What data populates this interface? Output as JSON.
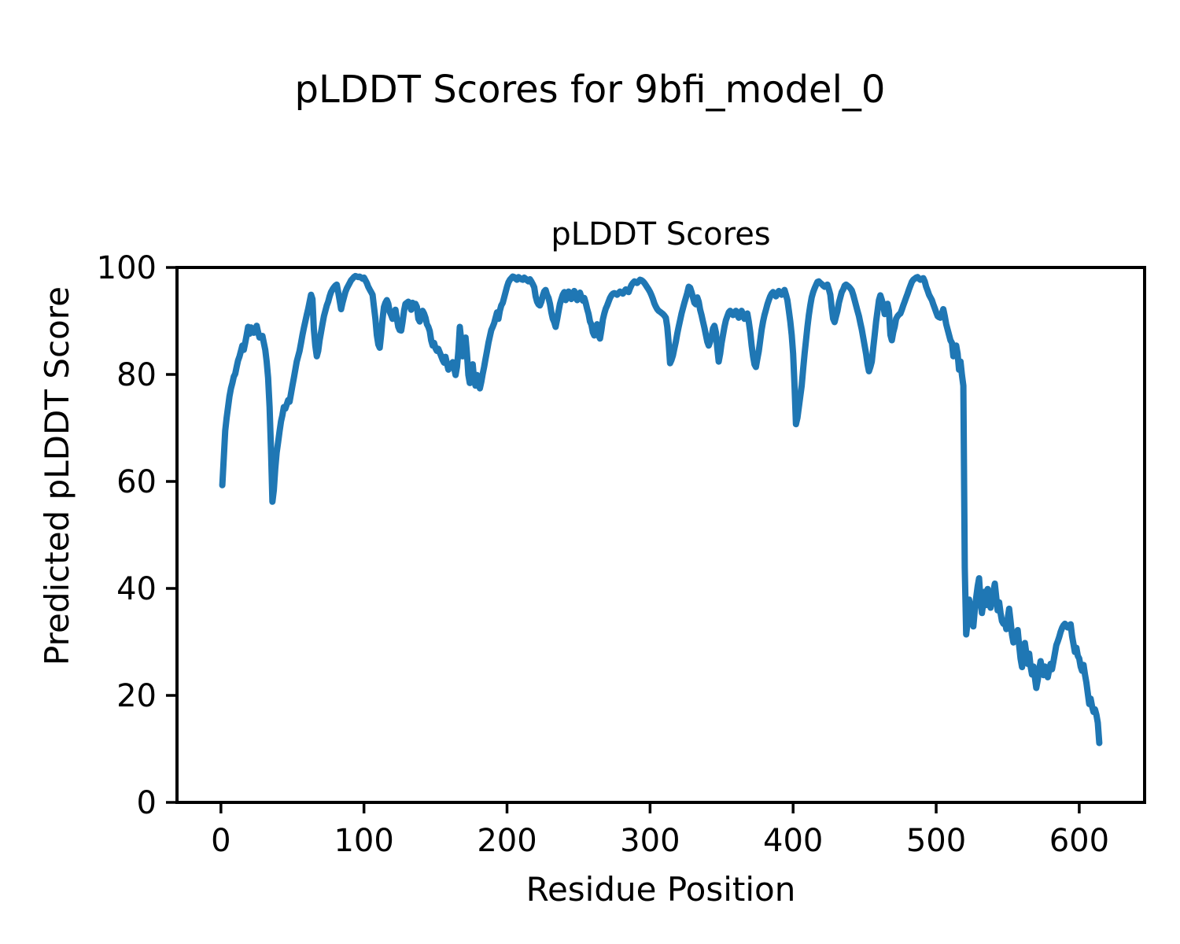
{
  "figure_title": "pLDDT Scores for 9bfi_model_0",
  "chart_data": {
    "type": "line",
    "title": "pLDDT Scores",
    "xlabel": "Residue Position",
    "ylabel": "Predicted pLDDT Score",
    "xlim": [
      -30.7,
      645.7
    ],
    "ylim": [
      0,
      100
    ],
    "xticks": [
      0,
      100,
      200,
      300,
      400,
      500,
      600
    ],
    "yticks": [
      0,
      20,
      40,
      60,
      80,
      100
    ],
    "grid": false,
    "legend": "none",
    "line_color": "#1f77b4",
    "series": [
      {
        "name": "pLDDT",
        "x_start": 1,
        "x_step": 1,
        "values": [
          59.3,
          64.5,
          69.5,
          71.9,
          73.9,
          75.9,
          77.4,
          78.4,
          79.6,
          80.1,
          81.4,
          82.6,
          83.4,
          84.4,
          85.4,
          84.6,
          85.9,
          87.4,
          88.9,
          87.6,
          88.8,
          88.1,
          87.8,
          88.4,
          89.1,
          87.9,
          86.9,
          87.1,
          87.2,
          85.9,
          84.6,
          82.4,
          79.4,
          73.9,
          65.9,
          56.2,
          58.4,
          62.4,
          65.4,
          67.4,
          69.4,
          71.2,
          72.4,
          73.9,
          73.6,
          74.4,
          75.2,
          74.9,
          76.4,
          77.9,
          79.4,
          80.9,
          82.4,
          83.4,
          84.4,
          85.9,
          87.4,
          88.7,
          89.9,
          91.1,
          92.3,
          93.6,
          94.9,
          94.1,
          88.4,
          85.4,
          83.4,
          84.4,
          86.4,
          87.9,
          89.4,
          90.9,
          91.9,
          92.9,
          93.6,
          94.6,
          95.4,
          95.9,
          96.3,
          96.6,
          96.8,
          95.4,
          93.8,
          92.2,
          93.4,
          94.4,
          95.4,
          96.1,
          96.6,
          97.1,
          97.6,
          97.9,
          98.2,
          98.4,
          98.3,
          98.2,
          98.3,
          98.1,
          97.9,
          98.1,
          97.6,
          97.1,
          96.4,
          95.9,
          95.4,
          94.9,
          92.6,
          90.4,
          87.4,
          85.6,
          85.0,
          87.4,
          90.4,
          92.6,
          93.4,
          93.9,
          93.2,
          91.7,
          91.1,
          90.4,
          91.4,
          92.1,
          90.4,
          88.9,
          88.3,
          88.2,
          89.9,
          91.9,
          93.2,
          93.4,
          93.6,
          92.9,
          92.1,
          93.4,
          93.1,
          93.2,
          92.6,
          90.4,
          89.9,
          90.9,
          91.9,
          91.4,
          90.6,
          89.4,
          88.9,
          88.1,
          86.4,
          85.4,
          85.9,
          84.9,
          84.4,
          84.8,
          84.1,
          83.4,
          82.7,
          82.2,
          83.3,
          82.1,
          80.9,
          81.9,
          81.3,
          82.3,
          81.3,
          79.9,
          81.4,
          84.4,
          88.9,
          86.4,
          83.4,
          84.9,
          86.9,
          83.9,
          79.9,
          78.4,
          80.9,
          81.9,
          78.9,
          77.9,
          79.9,
          78.4,
          77.4,
          78.6,
          80.1,
          81.4,
          82.9,
          84.4,
          85.9,
          87.1,
          88.3,
          88.9,
          89.6,
          90.6,
          91.6,
          90.4,
          91.9,
          92.9,
          93.4,
          94.4,
          95.4,
          96.4,
          97.2,
          97.7,
          98.0,
          98.3,
          98.2,
          97.9,
          97.7,
          98.2,
          98.0,
          97.8,
          97.7,
          98.1,
          97.9,
          97.6,
          97.4,
          97.8,
          97.4,
          96.9,
          96.3,
          94.6,
          93.6,
          93.1,
          92.9,
          93.6,
          94.7,
          95.5,
          95.8,
          94.9,
          94.3,
          93.2,
          91.6,
          90.4,
          89.8,
          88.9,
          90.3,
          91.8,
          93.2,
          94.1,
          94.9,
          95.4,
          93.9,
          94.4,
          95.5,
          94.7,
          94.1,
          95.0,
          95.6,
          94.6,
          93.9,
          94.8,
          95.3,
          94.4,
          93.8,
          94.3,
          93.4,
          92.3,
          91.3,
          89.9,
          89.3,
          87.9,
          87.3,
          88.9,
          89.4,
          87.3,
          86.7,
          88.3,
          90.3,
          91.4,
          92.3,
          92.9,
          93.6,
          94.3,
          94.8,
          95.1,
          95.2,
          95.1,
          94.9,
          95.2,
          95.5,
          95.3,
          95.1,
          95.5,
          95.9,
          95.6,
          95.4,
          96.1,
          96.7,
          97.1,
          97.4,
          97.3,
          97.1,
          97.4,
          97.7,
          97.6,
          97.4,
          97.1,
          96.7,
          96.3,
          95.9,
          95.4,
          94.8,
          94.1,
          93.3,
          92.7,
          92.2,
          91.9,
          91.7,
          91.5,
          91.3,
          91.0,
          90.6,
          88.9,
          85.9,
          82.1,
          82.7,
          83.6,
          84.9,
          86.1,
          87.6,
          88.9,
          90.1,
          91.4,
          92.4,
          93.4,
          94.3,
          95.2,
          96.4,
          96.2,
          95.4,
          94.4,
          93.4,
          93.1,
          94.4,
          93.6,
          92.1,
          91.1,
          89.9,
          88.7,
          87.4,
          86.1,
          85.4,
          86.1,
          87.1,
          88.6,
          89.1,
          87.9,
          84.9,
          82.4,
          83.9,
          85.9,
          87.4,
          88.9,
          90.1,
          90.9,
          91.6,
          91.9,
          91.4,
          91.1,
          91.6,
          91.9,
          91.1,
          90.6,
          91.4,
          91.9,
          91.1,
          90.4,
          91.2,
          91.4,
          89.9,
          87.9,
          85.4,
          83.4,
          81.9,
          81.4,
          82.9,
          84.4,
          86.4,
          88.4,
          89.9,
          91.1,
          92.1,
          93.1,
          93.9,
          94.6,
          95.1,
          95.4,
          94.9,
          94.6,
          95.1,
          95.6,
          95.1,
          94.9,
          95.4,
          95.8,
          94.9,
          93.9,
          91.9,
          89.9,
          87.4,
          83.9,
          77.9,
          70.7,
          71.9,
          73.9,
          75.9,
          77.9,
          80.9,
          83.9,
          86.4,
          88.9,
          91.1,
          92.9,
          94.4,
          95.4,
          96.1,
          96.7,
          97.3,
          97.4,
          97.1,
          96.9,
          96.6,
          96.4,
          96.6,
          96.8,
          95.9,
          94.9,
          92.4,
          90.4,
          89.8,
          90.9,
          91.9,
          93.4,
          94.4,
          95.4,
          95.9,
          96.6,
          96.8,
          96.6,
          96.4,
          96.1,
          95.7,
          94.9,
          93.9,
          92.9,
          91.9,
          90.9,
          89.6,
          88.4,
          86.9,
          85.4,
          83.9,
          81.9,
          80.6,
          81.4,
          82.4,
          84.9,
          87.4,
          89.9,
          91.9,
          93.9,
          94.8,
          93.9,
          92.9,
          91.3,
          92.1,
          93.2,
          91.9,
          87.4,
          86.4,
          87.9,
          88.9,
          90.4,
          90.9,
          91.2,
          91.4,
          92.1,
          92.9,
          93.6,
          94.4,
          95.1,
          95.9,
          96.6,
          97.3,
          97.7,
          97.9,
          98.1,
          98.2,
          97.9,
          97.7,
          97.9,
          98.0,
          97.4,
          96.4,
          95.7,
          94.9,
          94.4,
          93.9,
          93.1,
          92.4,
          91.6,
          90.9,
          90.7,
          90.6,
          91.4,
          92.2,
          90.9,
          89.4,
          88.4,
          87.4,
          86.4,
          85.9,
          83.4,
          84.4,
          85.4,
          83.9,
          80.9,
          82.4,
          79.9,
          77.9,
          43.9,
          31.4,
          33.9,
          37.9,
          36.4,
          34.4,
          32.9,
          35.9,
          38.4,
          40.4,
          41.9,
          37.9,
          35.4,
          37.4,
          39.4,
          36.9,
          39.9,
          38.4,
          36.4,
          37.9,
          39.4,
          40.9,
          38.4,
          35.9,
          37.4,
          35.4,
          33.9,
          33.4,
          33.9,
          32.4,
          34.4,
          36.2,
          33.9,
          31.4,
          29.9,
          31.8,
          30.4,
          32.2,
          29.4,
          26.9,
          25.3,
          27.4,
          29.8,
          27.9,
          25.9,
          27.8,
          25.4,
          23.9,
          25.4,
          23.4,
          21.4,
          22.9,
          24.9,
          26.4,
          24.9,
          23.8,
          25.4,
          24.4,
          23.4,
          24.8,
          25.9,
          24.9,
          26.4,
          27.9,
          29.4,
          30.1,
          30.9,
          31.9,
          32.6,
          33.1,
          33.4,
          32.9,
          32.7,
          33.1,
          33.3,
          31.1,
          29.6,
          28.1,
          28.9,
          27.4,
          26.9,
          25.4,
          24.6,
          25.7,
          23.9,
          22.4,
          20.4,
          18.4,
          19.4,
          17.9,
          16.9,
          17.4,
          16.4,
          14.9,
          11.1
        ]
      }
    ]
  }
}
